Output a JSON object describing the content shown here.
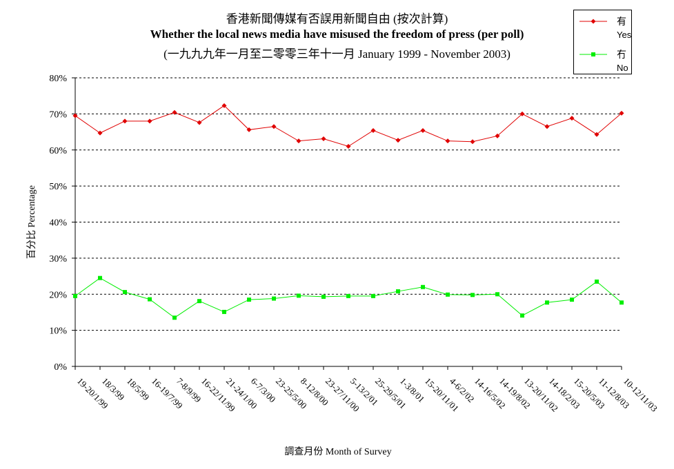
{
  "chart_data": {
    "type": "line",
    "title_zh": "香港新聞傳媒有否誤用新聞自由 (按次計算)",
    "title_en": "Whether the local news media have misused the freedom of press (per poll)",
    "subtitle": "(一九九九年一月至二零零三年十一月 January 1999 - November 2003)",
    "ylabel": "百分比 Percentage",
    "xlabel": "調查月份 Month of Survey",
    "ylim": [
      0,
      80
    ],
    "yticks": [
      "0%",
      "10%",
      "20%",
      "30%",
      "40%",
      "50%",
      "60%",
      "70%",
      "80%"
    ],
    "grid": true,
    "legend_position": "top-right",
    "categories": [
      "19-20/1/99",
      "18/3/99",
      "18/5/99",
      "16-19/7/99",
      "7-8/9/99",
      "16-22/11/99",
      "21-24/1/00",
      "6-7/3/00",
      "23-25/5/00",
      "8-12/8/00",
      "23-27/11/00",
      "5-13/2/01",
      "25-29/5/01",
      "1-3/8/01",
      "15-20/11/01",
      "4-6/2/02",
      "14-16/5/02",
      "14-19/8/02",
      "13-20/11/02",
      "14-18/2/03",
      "15-20/5/03",
      "11-12/8/03",
      "10-12/11/03"
    ],
    "series": [
      {
        "name_zh": "有",
        "name_en": "Yes",
        "color": "#e00000",
        "values": [
          69.5,
          64.7,
          68.0,
          68.0,
          70.4,
          67.6,
          72.3,
          65.6,
          66.5,
          62.5,
          63.1,
          61.0,
          65.4,
          62.7,
          65.4,
          62.5,
          62.3,
          63.9,
          70.0,
          66.5,
          68.8,
          64.3,
          70.2
        ]
      },
      {
        "name_zh": "冇",
        "name_en": "No",
        "color": "#00ee00",
        "values": [
          19.5,
          24.5,
          20.6,
          18.6,
          13.5,
          18.1,
          15.1,
          18.5,
          18.8,
          19.6,
          19.3,
          19.5,
          19.5,
          20.8,
          22.0,
          19.9,
          19.8,
          20.0,
          14.1,
          17.7,
          18.5,
          23.5,
          17.7
        ]
      }
    ]
  }
}
